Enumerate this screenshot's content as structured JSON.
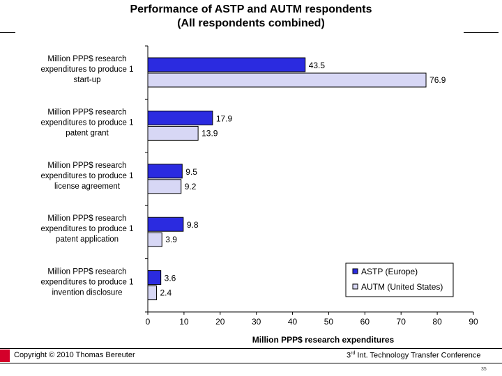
{
  "page": {
    "title_line1": "Performance of ASTP and AUTM respondents",
    "title_line2": "(All respondents combined)",
    "footer_left": "Copyright © 2010 Thomas Bereuter",
    "footer_right_num": "3",
    "footer_right_sup": "rd",
    "footer_right_rest": " Int. Technology Transfer Conference",
    "page_number": "35"
  },
  "colors": {
    "astp": "#2b2be0",
    "autm": "#d7d7f5",
    "accent": "#d4002a"
  },
  "chart_data": {
    "type": "bar",
    "orientation": "horizontal",
    "title": "Performance of ASTP and AUTM respondents (All respondents combined)",
    "xlabel": "Million PPP$ research expenditures",
    "xlim": [
      0,
      90
    ],
    "xticks": [
      0,
      10,
      20,
      30,
      40,
      50,
      60,
      70,
      80,
      90
    ],
    "categories": [
      [
        "Million PPP$ research",
        "expenditures to produce 1",
        "start-up"
      ],
      [
        "Million PPP$ research",
        "expenditures to produce 1",
        "patent grant"
      ],
      [
        "Million PPP$ research",
        "expenditures to produce 1",
        "license agreement"
      ],
      [
        "Million PPP$ research",
        "expenditures to produce 1",
        "patent application"
      ],
      [
        "Million PPP$ research",
        "expenditures to produce 1",
        "invention disclosure"
      ]
    ],
    "series": [
      {
        "name": "ASTP (Europe)",
        "values": [
          43.5,
          17.9,
          9.5,
          9.8,
          3.6
        ]
      },
      {
        "name": "AUTM (United States)",
        "values": [
          76.9,
          13.9,
          9.2,
          3.9,
          2.4
        ]
      }
    ],
    "legend_position": "bottom-right"
  }
}
